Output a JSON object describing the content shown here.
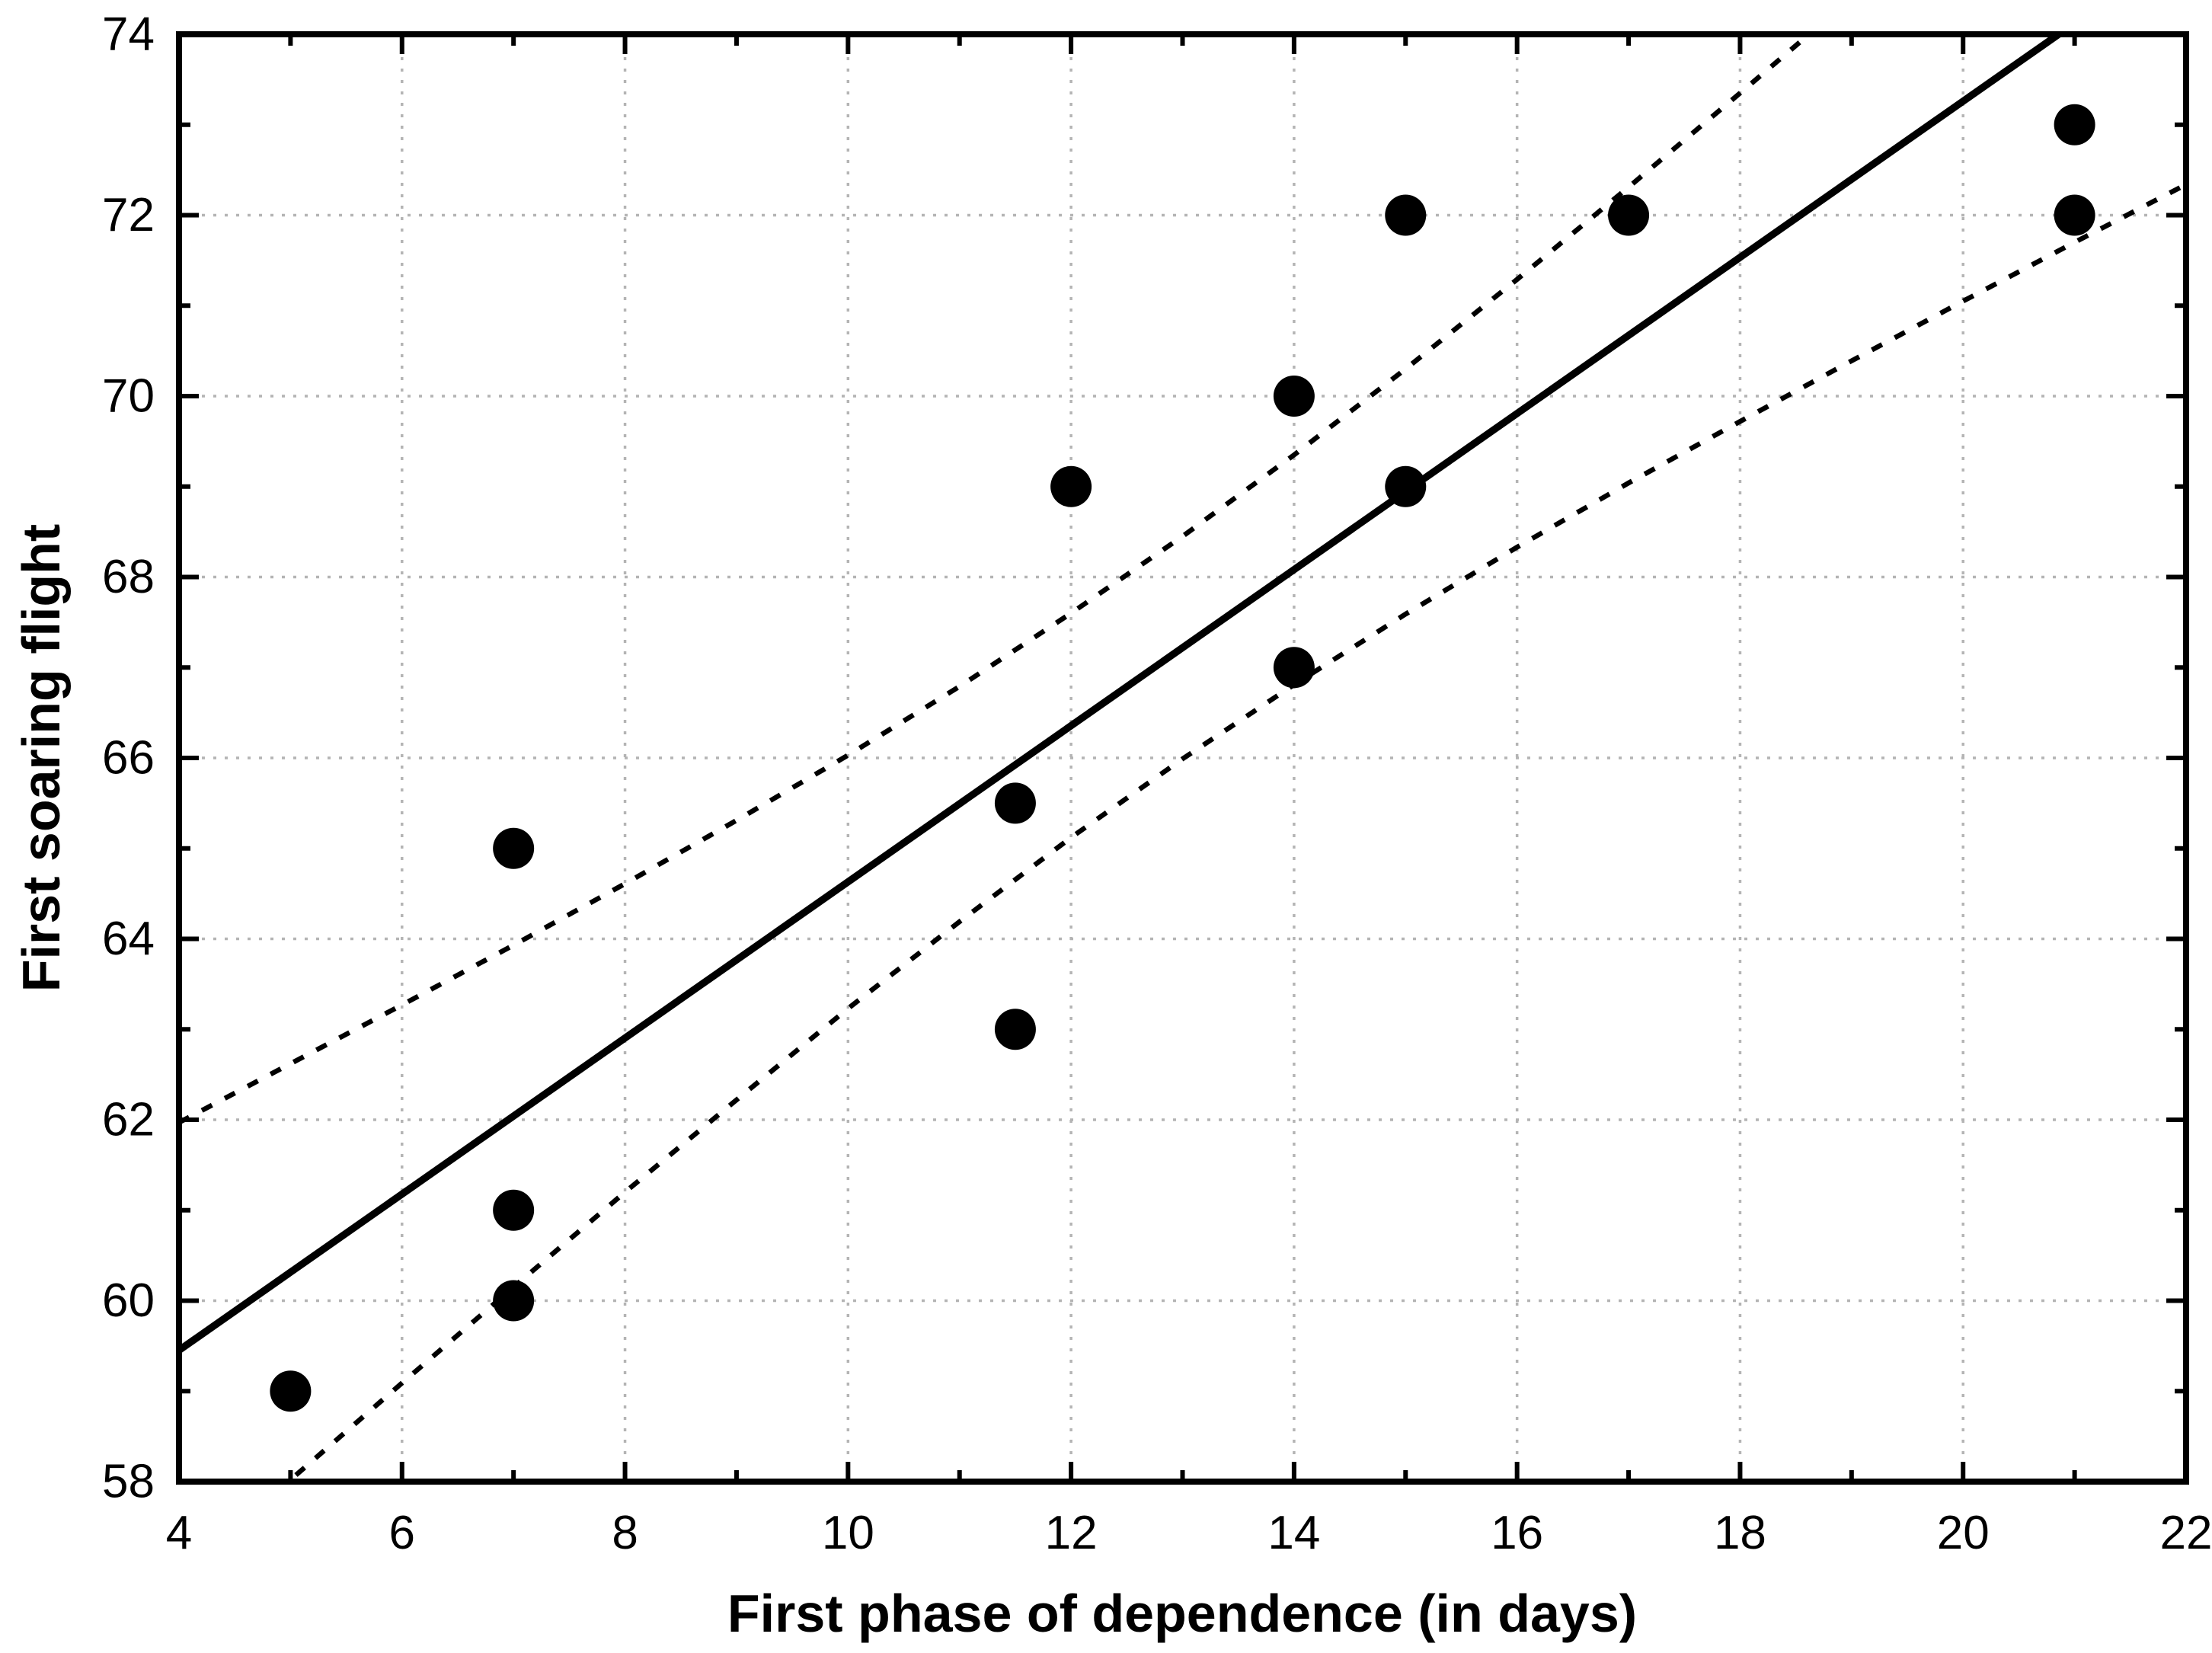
{
  "figure": {
    "background": "#ffffff",
    "frame_color": "#000000",
    "grid_color": "#b4b4b4",
    "point_color": "#000000",
    "line_color": "#000000"
  },
  "chart_data": {
    "type": "scatter",
    "title": "",
    "xlabel": "First phase of dependence (in days)",
    "ylabel": "First soaring flight",
    "xlim": [
      4,
      22
    ],
    "ylim": [
      58,
      74
    ],
    "grid": true,
    "legend": "none",
    "x_major_ticks": [
      4,
      6,
      8,
      10,
      12,
      14,
      16,
      18,
      20,
      22
    ],
    "x_minor_ticks": [
      5,
      7,
      9,
      11,
      13,
      15,
      17,
      19,
      21
    ],
    "y_major_ticks": [
      58,
      60,
      62,
      64,
      66,
      68,
      70,
      72,
      74
    ],
    "y_minor_ticks": [
      59,
      61,
      63,
      65,
      67,
      69,
      71,
      73
    ],
    "points": [
      [
        5,
        59
      ],
      [
        7,
        65
      ],
      [
        7,
        61
      ],
      [
        7,
        60
      ],
      [
        11.5,
        65.5
      ],
      [
        11.5,
        63
      ],
      [
        12,
        69
      ],
      [
        14,
        70
      ],
      [
        14,
        67
      ],
      [
        15,
        72
      ],
      [
        15,
        69
      ],
      [
        17,
        72
      ],
      [
        21,
        73
      ],
      [
        21,
        72
      ]
    ],
    "regression_line": {
      "style": "solid",
      "intercept": 56.0,
      "slope": 0.863,
      "x_start": 4,
      "x_end": 22
    },
    "confidence_band": {
      "style": "dotted",
      "x": [
        4,
        5,
        6,
        7,
        8,
        9,
        10,
        11,
        12,
        13,
        14,
        15,
        16,
        17,
        18,
        19,
        20,
        21,
        22
      ],
      "upper": [
        61.97,
        62.62,
        63.27,
        63.93,
        64.61,
        65.31,
        66.03,
        66.79,
        67.6,
        68.45,
        69.35,
        70.3,
        71.29,
        72.31,
        73.35,
        74.4,
        75.47,
        76.55,
        77.63
      ],
      "lower": [
        56.94,
        58.02,
        59.09,
        60.15,
        61.2,
        62.22,
        63.23,
        64.19,
        65.12,
        65.99,
        66.81,
        67.59,
        68.33,
        69.04,
        69.72,
        70.39,
        71.05,
        71.7,
        72.34
      ]
    }
  }
}
